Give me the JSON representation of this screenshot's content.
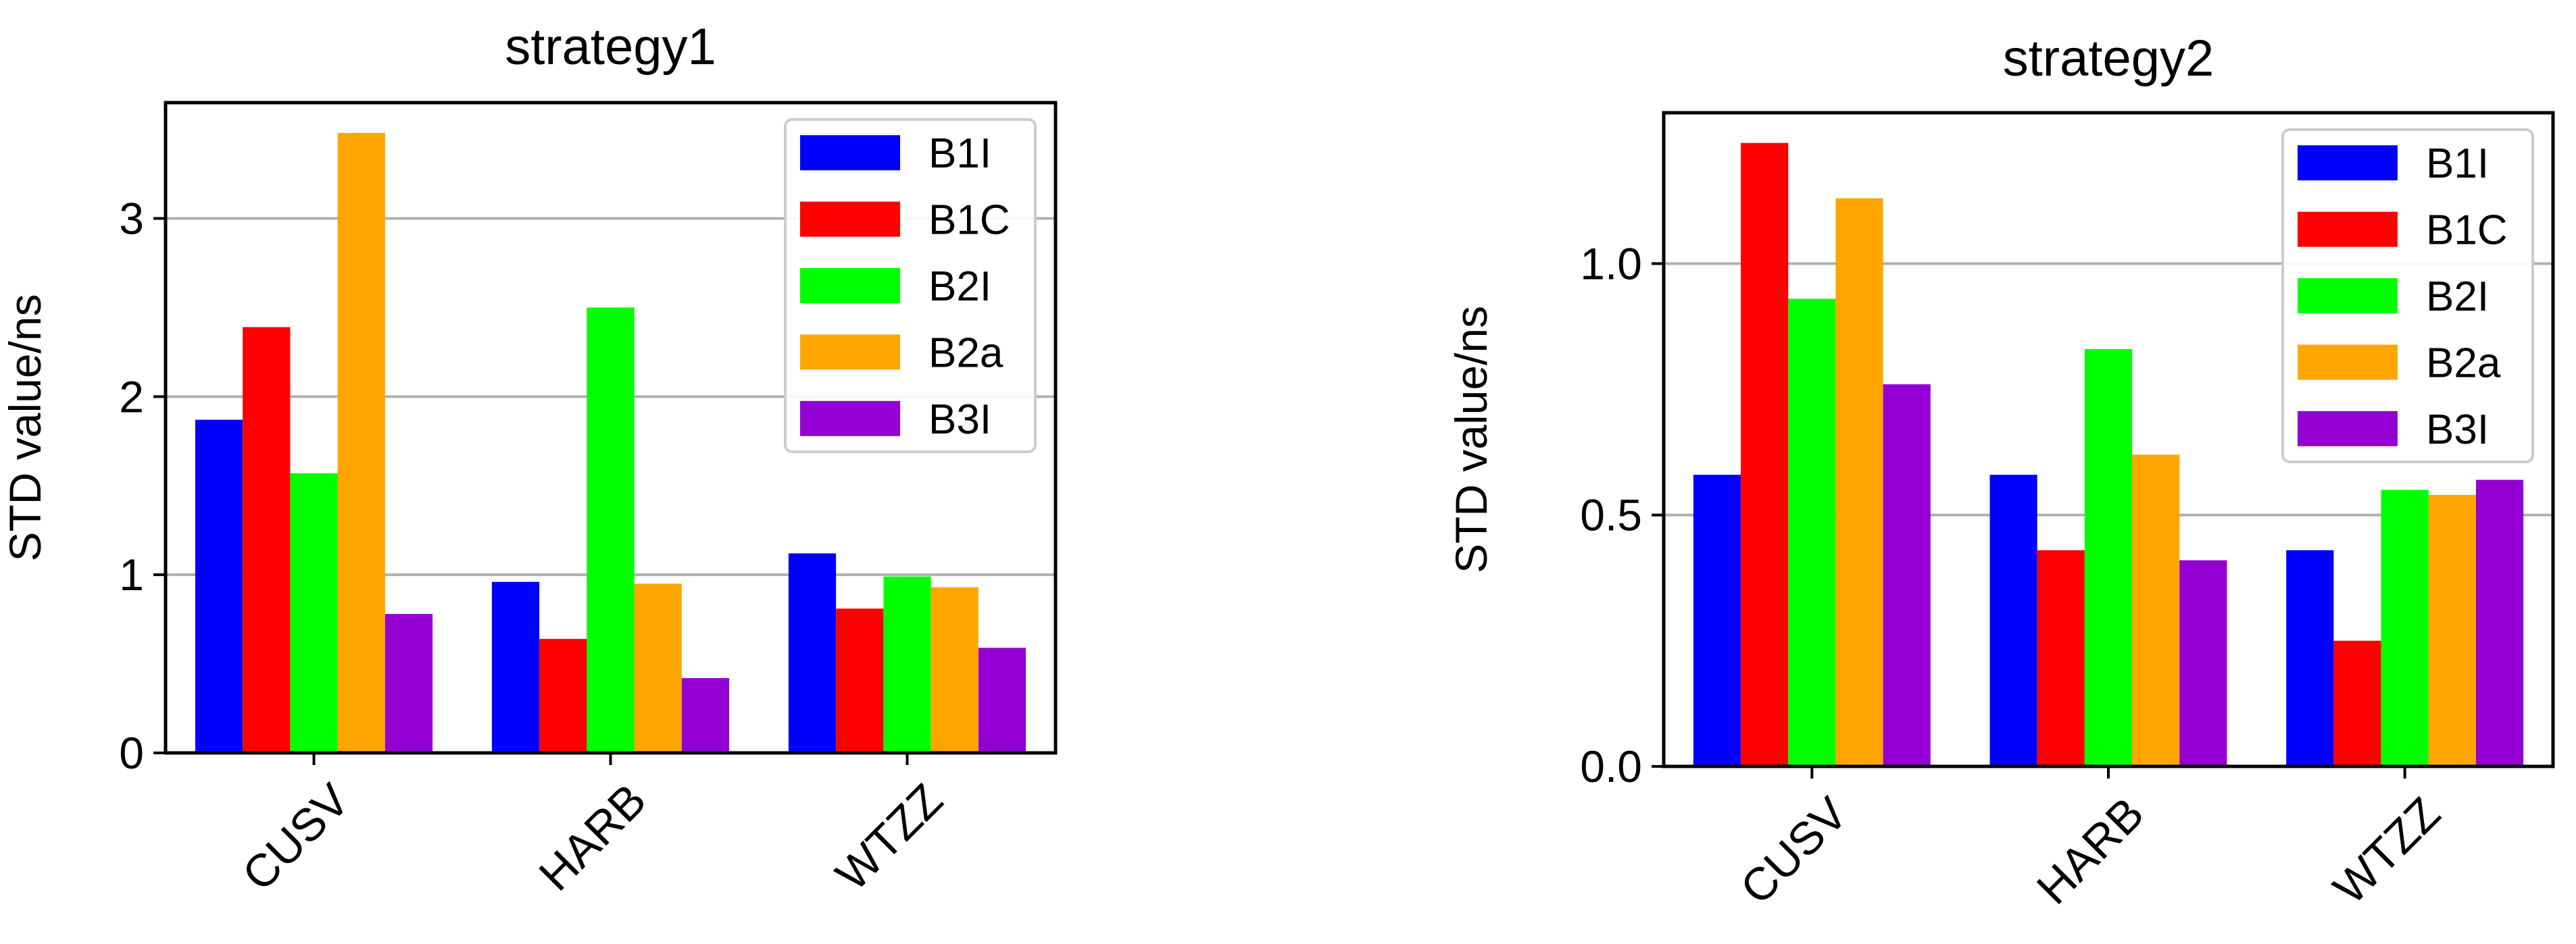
{
  "chart_data": [
    {
      "type": "bar",
      "title": "strategy1",
      "xlabel": "",
      "ylabel": "STD value/ns",
      "categories": [
        "CUSV",
        "HARB",
        "WTZZ"
      ],
      "ylim": [
        0,
        3.65
      ],
      "yticks": [
        0,
        1,
        2,
        3
      ],
      "ytick_labels": [
        "0",
        "1",
        "2",
        "3"
      ],
      "grid": "horizontal",
      "legend_position": "top-right",
      "series": [
        {
          "name": "B1I",
          "color": "#0000ff",
          "values": [
            1.87,
            0.96,
            1.12
          ]
        },
        {
          "name": "B1C",
          "color": "#ff0000",
          "values": [
            2.39,
            0.64,
            0.81
          ]
        },
        {
          "name": "B2I",
          "color": "#00ff00",
          "values": [
            1.57,
            2.5,
            0.99
          ]
        },
        {
          "name": "B2a",
          "color": "#ffa500",
          "values": [
            3.48,
            0.95,
            0.93
          ]
        },
        {
          "name": "B3I",
          "color": "#9400d3",
          "values": [
            0.78,
            0.42,
            0.59
          ]
        }
      ]
    },
    {
      "type": "bar",
      "title": "strategy2",
      "xlabel": "",
      "ylabel": "STD value/ns",
      "categories": [
        "CUSV",
        "HARB",
        "WTZZ"
      ],
      "ylim": [
        0,
        1.3
      ],
      "yticks": [
        0,
        0.5,
        1.0
      ],
      "ytick_labels": [
        "0.0",
        "0.5",
        "1.0"
      ],
      "grid": "horizontal",
      "legend_position": "top-right",
      "series": [
        {
          "name": "B1I",
          "color": "#0000ff",
          "values": [
            0.58,
            0.58,
            0.43
          ]
        },
        {
          "name": "B1C",
          "color": "#ff0000",
          "values": [
            1.24,
            0.43,
            0.25
          ]
        },
        {
          "name": "B2I",
          "color": "#00ff00",
          "values": [
            0.93,
            0.83,
            0.55
          ]
        },
        {
          "name": "B2a",
          "color": "#ffa500",
          "values": [
            1.13,
            0.62,
            0.54
          ]
        },
        {
          "name": "B3I",
          "color": "#9400d3",
          "values": [
            0.76,
            0.41,
            0.57
          ]
        }
      ]
    }
  ]
}
